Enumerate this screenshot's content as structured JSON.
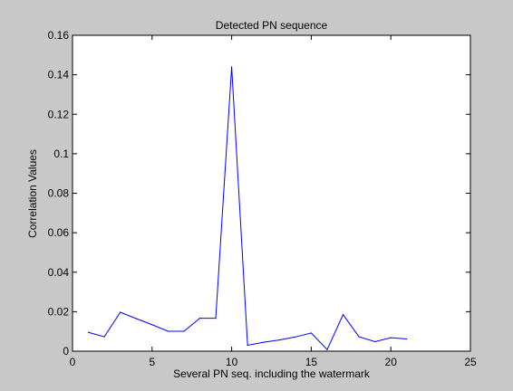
{
  "chart_data": {
    "type": "line",
    "title": "Detected PN sequence",
    "xlabel": "Several PN seq. including the watermark",
    "ylabel": "Correlation Values",
    "xlim": [
      0,
      25
    ],
    "ylim": [
      0,
      0.16
    ],
    "xticks": [
      "0",
      "5",
      "10",
      "15",
      "20",
      "25"
    ],
    "yticks": [
      "0",
      "0.02",
      "0.04",
      "0.06",
      "0.08",
      "0.1",
      "0.12",
      "0.14",
      "0.16"
    ],
    "grid": false,
    "series": [
      {
        "color": "#0000ff",
        "x": [
          1,
          2,
          3,
          4,
          5,
          6,
          7,
          8,
          9,
          10,
          11,
          12,
          13,
          14,
          15,
          16,
          17,
          18,
          19,
          20,
          21
        ],
        "y": [
          0.0095,
          0.0073,
          0.0197,
          0.0165,
          0.0134,
          0.0101,
          0.0101,
          0.0167,
          0.0167,
          0.144,
          0.003,
          0.0045,
          0.0057,
          0.0072,
          0.0092,
          0.0008,
          0.0185,
          0.0073,
          0.0048,
          0.0068,
          0.0062
        ]
      }
    ]
  }
}
